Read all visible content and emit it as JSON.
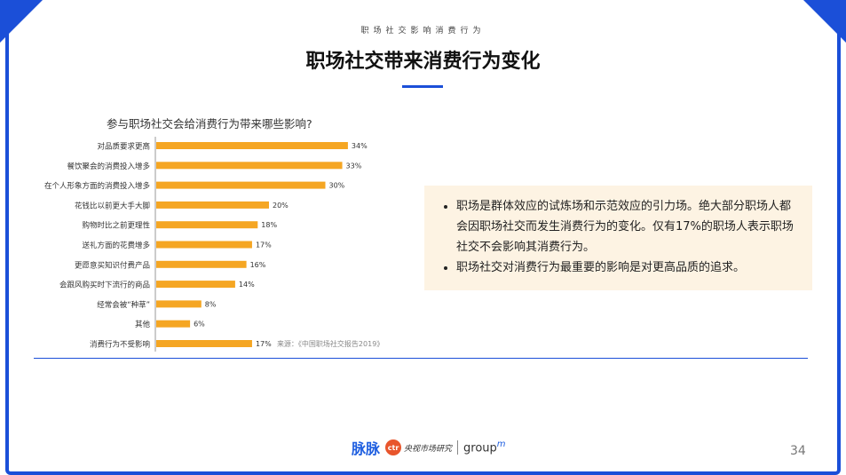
{
  "header": {
    "overline": "职场社交影响消费行为",
    "title": "职场社交带来消费行为变化"
  },
  "chart_data": {
    "type": "bar",
    "orientation": "horizontal",
    "title": "参与职场社交会给消费行为带来哪些影响?",
    "categories": [
      "对品质要求更高",
      "餐饮聚会的消费投入增多",
      "在个人形象方面的消费投入增多",
      "花钱比以前更大手大脚",
      "购物时比之前更理性",
      "送礼方面的花费增多",
      "更愿意买知识付费产品",
      "会跟风购买时下流行的商品",
      "经常会被“种草”",
      "其他",
      "消费行为不受影响"
    ],
    "values": [
      34,
      33,
      30,
      20,
      18,
      17,
      16,
      14,
      8,
      6,
      17
    ],
    "value_labels": [
      "34%",
      "33%",
      "30%",
      "20%",
      "18%",
      "17%",
      "16%",
      "14%",
      "8%",
      "6%",
      "17%"
    ],
    "color": "#f5a623",
    "source": "来源：《中国职场社交报告2019》"
  },
  "note": {
    "bullets": [
      "职场是群体效应的试炼场和示范效应的引力场。绝大部分职场人都会因职场社交而发生消费行为的变化。仅有17%的职场人表示职场社交不会影响其消费行为。",
      "职场社交对消费行为最重要的影响是对更高品质的追求。"
    ]
  },
  "footer": {
    "logo_maimai": "脉脉",
    "logo_ctr": "ctr",
    "logo_ctr_text": "央视市场研究",
    "logo_groupm": "group",
    "logo_groupm_m": "m",
    "page_number": "34"
  }
}
